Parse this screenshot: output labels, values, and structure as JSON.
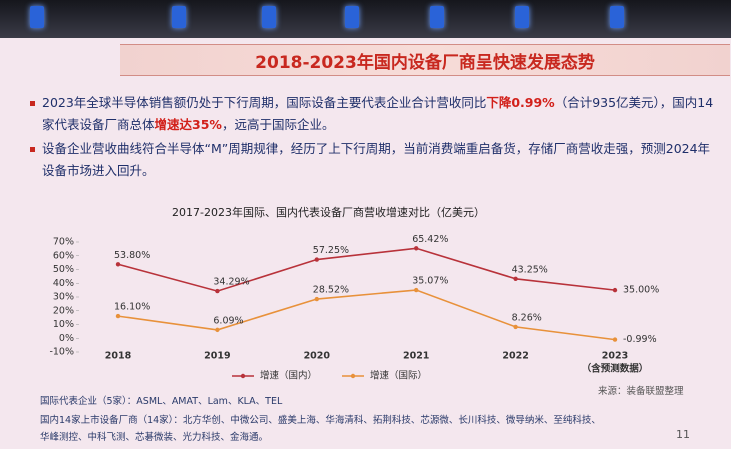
{
  "header": {
    "title": "2018-2023年国内设备厂商呈快速发展态势"
  },
  "bullets": [
    {
      "segments": [
        {
          "text": "2023年全球半导体销售额仍处于下行周期，国际设备主要代表企业合计营收同比",
          "highlight": false
        },
        {
          "text": "下降0.99%",
          "highlight": true
        },
        {
          "text": "（合计935亿美元），国内14家代表设备厂商总体",
          "highlight": false
        },
        {
          "text": "增速达35%",
          "highlight": true
        },
        {
          "text": "，远高于国际企业。",
          "highlight": false
        }
      ]
    },
    {
      "segments": [
        {
          "text": "设备企业营收曲线符合半导体“M”周期规律，经历了上下行周期，当前消费端重启备货，存储厂商营收走强，预测2024年设备市场进入回升。",
          "highlight": false
        }
      ]
    }
  ],
  "chart_data": {
    "type": "line",
    "title": "2017-2023年国际、国内代表设备厂商营收增速对比（亿美元）",
    "categories": [
      "2018",
      "2019",
      "2020",
      "2021",
      "2022",
      "2023"
    ],
    "category_note": "（含预测数据）",
    "series": [
      {
        "name": "增速（国内）",
        "color": "#b8323a",
        "values": [
          53.8,
          34.29,
          57.25,
          65.42,
          43.25,
          35.0
        ],
        "value_labels": [
          "53.80%",
          "34.29%",
          "57.25%",
          "65.42%",
          "43.25%",
          "35.00%"
        ]
      },
      {
        "name": "增速（国际）",
        "color": "#e8913a",
        "values": [
          16.1,
          6.09,
          28.52,
          35.07,
          8.26,
          -0.99
        ],
        "value_labels": [
          "16.10%",
          "6.09%",
          "28.52%",
          "35.07%",
          "8.26%",
          "-0.99%"
        ]
      }
    ],
    "ylim": [
      -10,
      70
    ],
    "yticks": [
      {
        "value": -10,
        "label": "-10%"
      },
      {
        "value": 0,
        "label": "0%"
      },
      {
        "value": 10,
        "label": "10%"
      },
      {
        "value": 20,
        "label": "20%"
      },
      {
        "value": 30,
        "label": "30%"
      },
      {
        "value": 40,
        "label": "40%"
      },
      {
        "value": 50,
        "label": "50%"
      },
      {
        "value": 60,
        "label": "60%"
      },
      {
        "value": 70,
        "label": "70%"
      }
    ],
    "grid": false,
    "source": "来源：装备联盟整理"
  },
  "footer": {
    "lines": [
      "国际代表企业（5家）：ASML、AMAT、Lam、KLA、TEL",
      "国内14家上市设备厂商（14家）：北方华创、中微公司、盛美上海、华海清科、拓荆科技、芯源微、长川科技、微导纳米、至纯科技、",
      "华峰测控、中科飞测、芯碁微装、光力科技、金海通。"
    ],
    "page": "11"
  }
}
